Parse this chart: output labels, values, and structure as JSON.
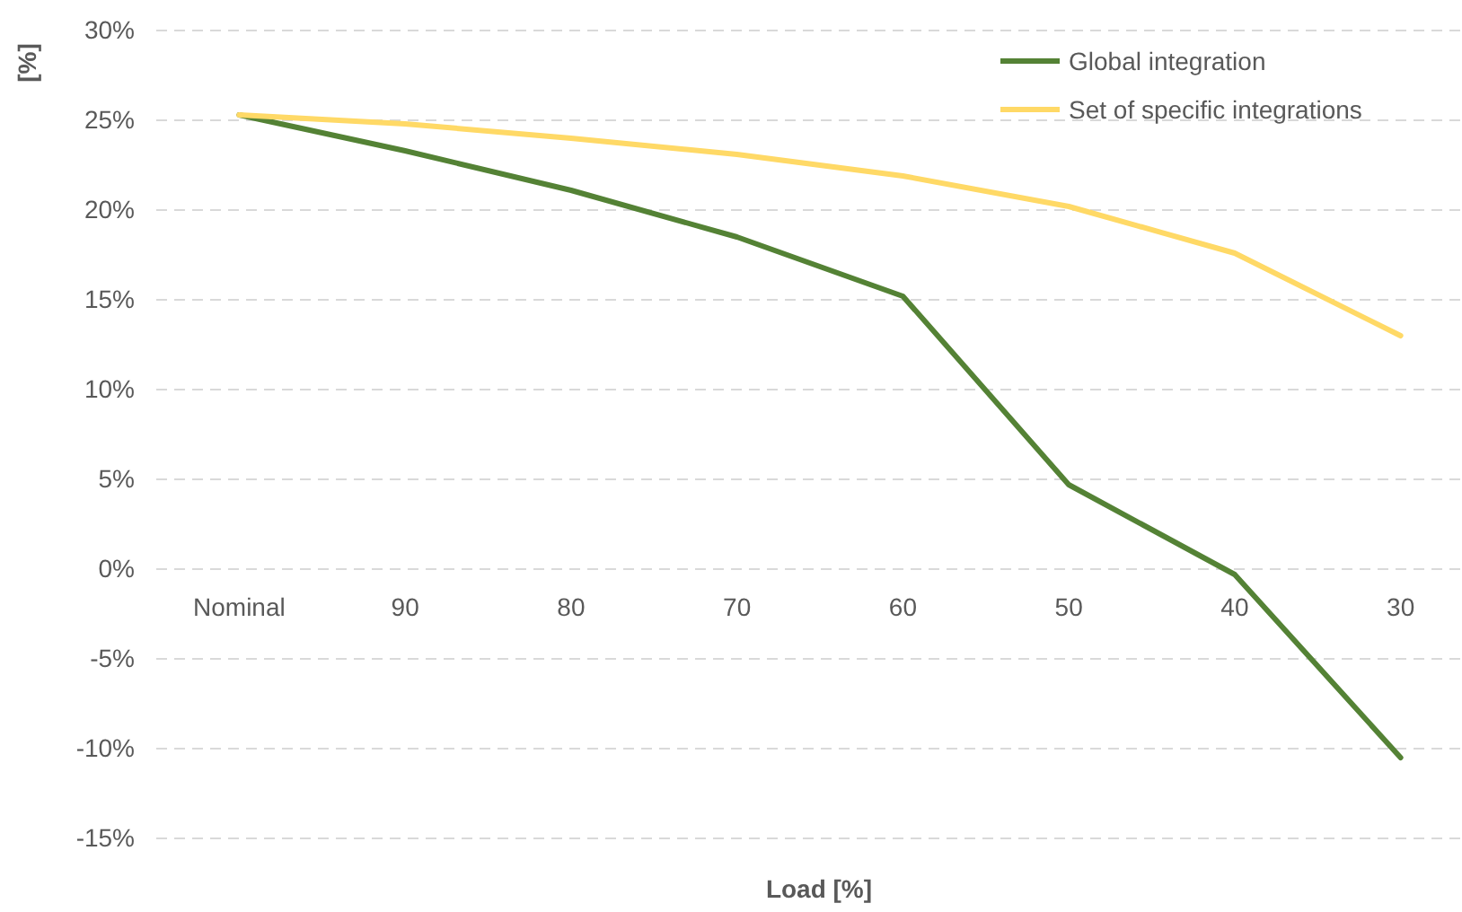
{
  "chart_data": {
    "type": "line",
    "xlabel": "Load [%]",
    "ylabel": "[%]",
    "categories": [
      "Nominal",
      "90",
      "80",
      "70",
      "60",
      "50",
      "40",
      "30"
    ],
    "series": [
      {
        "name": "Global integration",
        "color": "#548235",
        "values": [
          25.3,
          23.3,
          21.1,
          18.5,
          15.2,
          4.7,
          -0.3,
          -10.5
        ]
      },
      {
        "name": "Set of specific integrations",
        "color": "#ffd966",
        "values": [
          25.3,
          24.8,
          24.0,
          23.1,
          21.9,
          20.2,
          17.6,
          13.0
        ]
      }
    ],
    "ylim": [
      -15,
      30
    ],
    "yticks": [
      {
        "value": -15,
        "label": "-15%"
      },
      {
        "value": -10,
        "label": "-10%"
      },
      {
        "value": -5,
        "label": "-5%"
      },
      {
        "value": 0,
        "label": "0%"
      },
      {
        "value": 5,
        "label": "5%"
      },
      {
        "value": 10,
        "label": "10%"
      },
      {
        "value": 15,
        "label": "15%"
      },
      {
        "value": 20,
        "label": "20%"
      },
      {
        "value": 25,
        "label": "25%"
      },
      {
        "value": 30,
        "label": "30%"
      }
    ],
    "grid": "y",
    "legend": "top right",
    "marker": "none",
    "line_style": "solid"
  }
}
